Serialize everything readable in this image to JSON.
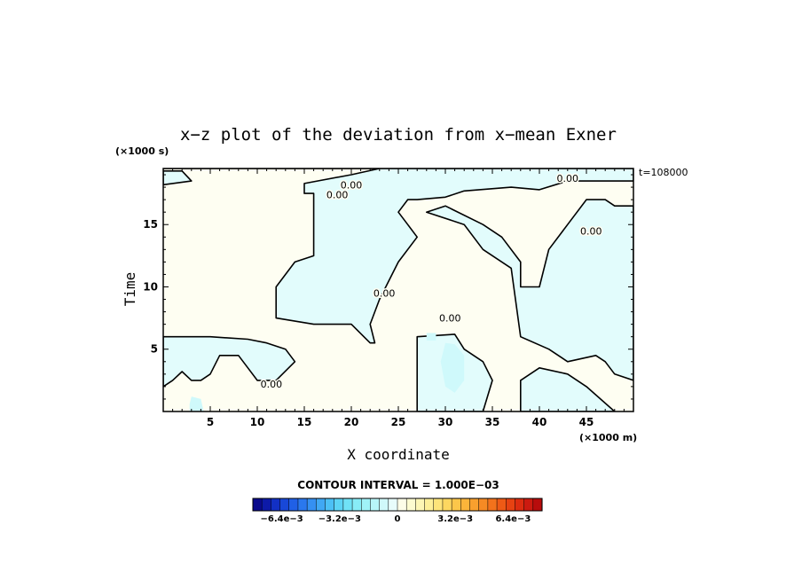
{
  "chart_data": {
    "type": "contour",
    "title": "x−z plot of the deviation from x−mean Exner",
    "xlabel": "X coordinate",
    "ylabel": "Time",
    "x_unit": "(×1000 m)",
    "y_unit": "(×1000 s)",
    "time_stamp": "t=108000",
    "xlim": [
      0,
      50
    ],
    "ylim": [
      0,
      19.5
    ],
    "x_ticks": [
      5,
      10,
      15,
      20,
      25,
      30,
      35,
      40,
      45
    ],
    "x_tick_labels": [
      "5",
      "10",
      "15",
      "20",
      "25",
      "30",
      "35",
      "40",
      "45"
    ],
    "y_ticks": [
      5,
      10,
      15
    ],
    "y_tick_labels": [
      "5",
      "10",
      "15"
    ],
    "contour_interval": "CONTOUR INTERVAL = 1.000E−03",
    "contour_level_label": "0.00",
    "contour_line_labels": [
      {
        "text": "0.00",
        "x": 20,
        "y": 18.2
      },
      {
        "text": "0.00",
        "x": 43,
        "y": 18.7
      },
      {
        "text": "0.00",
        "x": 18.5,
        "y": 17.4
      },
      {
        "text": "0.00",
        "x": 45.5,
        "y": 14.5
      },
      {
        "text": "0.00",
        "x": 23.5,
        "y": 9.5
      },
      {
        "text": "0.00",
        "x": 30.5,
        "y": 7.5
      },
      {
        "text": "0.00",
        "x": 11.5,
        "y": 2.2
      }
    ],
    "regions": [
      {
        "fill": "negative-small",
        "polygon": [
          [
            0,
            19.5
          ],
          [
            23,
            19.5
          ],
          [
            20,
            19
          ],
          [
            15,
            18.3
          ],
          [
            15,
            17.5
          ],
          [
            16,
            17.5
          ],
          [
            16,
            12.5
          ],
          [
            14,
            12
          ],
          [
            12,
            10
          ],
          [
            12,
            7.5
          ],
          [
            16,
            7
          ],
          [
            20,
            7
          ],
          [
            22,
            5.5
          ],
          [
            22.5,
            5.5
          ],
          [
            22,
            7
          ],
          [
            23,
            9
          ],
          [
            25,
            12
          ],
          [
            27,
            14
          ],
          [
            26,
            15
          ],
          [
            25,
            16
          ],
          [
            26,
            17
          ],
          [
            27,
            17
          ],
          [
            30,
            17.2
          ],
          [
            32,
            17.7
          ],
          [
            37,
            18
          ],
          [
            40,
            17.8
          ],
          [
            43,
            18.5
          ],
          [
            50,
            18.5
          ],
          [
            50,
            19.5
          ]
        ]
      },
      {
        "fill": "negative-small",
        "polygon": [
          [
            0,
            19.3
          ],
          [
            2,
            19.3
          ],
          [
            3,
            18.5
          ],
          [
            0,
            18.2
          ]
        ]
      },
      {
        "fill": "negative-small",
        "polygon": [
          [
            28,
            16
          ],
          [
            32,
            15
          ],
          [
            34,
            13
          ],
          [
            37,
            11.5
          ],
          [
            38,
            6
          ],
          [
            41,
            5
          ],
          [
            43,
            4
          ],
          [
            46,
            4.5
          ],
          [
            47,
            4
          ],
          [
            48,
            3
          ],
          [
            50,
            2.5
          ],
          [
            50,
            16.5
          ],
          [
            48,
            16.5
          ],
          [
            47,
            17
          ],
          [
            45,
            17
          ],
          [
            43,
            15
          ],
          [
            41,
            13
          ],
          [
            40,
            10
          ],
          [
            38,
            10
          ],
          [
            38,
            12
          ],
          [
            36,
            14
          ],
          [
            34,
            15
          ],
          [
            30,
            16.5
          ]
        ]
      },
      {
        "fill": "negative-small",
        "polygon": [
          [
            0,
            6
          ],
          [
            5,
            6
          ],
          [
            9,
            5.8
          ],
          [
            11,
            5.5
          ],
          [
            13,
            5
          ],
          [
            14,
            4
          ],
          [
            12,
            2.5
          ],
          [
            10,
            2.5
          ],
          [
            9,
            3.5
          ],
          [
            8,
            4.5
          ],
          [
            6,
            4.5
          ],
          [
            5,
            3
          ],
          [
            4,
            2.5
          ],
          [
            3,
            2.5
          ],
          [
            2,
            3.2
          ],
          [
            1,
            2.5
          ],
          [
            0,
            2
          ]
        ]
      },
      {
        "fill": "negative-small",
        "polygon": [
          [
            27,
            6
          ],
          [
            31,
            6.2
          ],
          [
            32,
            5
          ],
          [
            34,
            4
          ],
          [
            35,
            2.5
          ],
          [
            34,
            0
          ],
          [
            27,
            0
          ],
          [
            27,
            3
          ]
        ]
      },
      {
        "fill": "negative-small",
        "polygon": [
          [
            38,
            0
          ],
          [
            38,
            2.5
          ],
          [
            40,
            3.5
          ],
          [
            43,
            3
          ],
          [
            45,
            2
          ],
          [
            48,
            0
          ]
        ]
      },
      {
        "fill": "negative-medium",
        "polygon": [
          [
            30,
            5.5
          ],
          [
            31,
            5.4
          ],
          [
            32,
            4.5
          ],
          [
            32,
            2.5
          ],
          [
            31,
            1.5
          ],
          [
            30,
            2
          ],
          [
            29.5,
            4
          ]
        ]
      },
      {
        "fill": "negative-medium",
        "polygon": [
          [
            3,
            1.2
          ],
          [
            4,
            1
          ],
          [
            4.3,
            0
          ],
          [
            2.8,
            0
          ],
          [
            2.8,
            0.6
          ]
        ]
      },
      {
        "fill": "negative-medium",
        "polygon": [
          [
            28,
            6.3
          ],
          [
            29,
            6.3
          ],
          [
            29,
            5.7
          ],
          [
            28,
            5.7
          ]
        ]
      }
    ],
    "colorbar": {
      "levels": 32,
      "colors_neg": [
        "#0a0a8c",
        "#0d1aa8",
        "#1230c4",
        "#1848d8",
        "#2060e6",
        "#2a78ee",
        "#3590f2",
        "#40a8f4",
        "#4cc0f5",
        "#5cd4f5",
        "#70e2f6",
        "#88ecf7",
        "#a0f2f8",
        "#b8f6f9",
        "#d0f9fa",
        "#e8fcfb"
      ],
      "colors_pos": [
        "#fdfde8",
        "#fdfbd0",
        "#fdf6b5",
        "#fdef98",
        "#fde47a",
        "#fdd760",
        "#fcc64a",
        "#fbb43a",
        "#f9a02e",
        "#f68a24",
        "#f3721c",
        "#ee5a16",
        "#e64212",
        "#dc2c10",
        "#cc1a10",
        "#b80c0c"
      ],
      "tick_labels": [
        "−6.4e−3",
        "−3.2e−3",
        "0",
        "3.2e−3",
        "6.4e−3"
      ],
      "tick_values": [
        -0.0064,
        -0.0032,
        0,
        0.0032,
        0.0064
      ],
      "range": [
        -0.008,
        0.008
      ]
    },
    "fill_colors": {
      "background": "#fefef2",
      "negative-small": "#e2fcfc",
      "negative-medium": "#cff9fb"
    }
  }
}
